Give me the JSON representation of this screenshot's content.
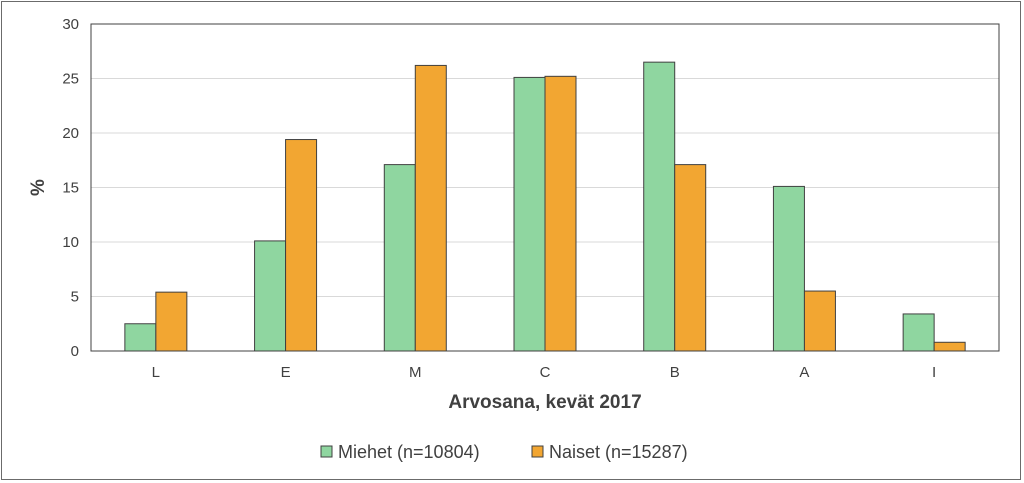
{
  "chart_data": {
    "type": "bar",
    "categories": [
      "L",
      "E",
      "M",
      "C",
      "B",
      "A",
      "I"
    ],
    "series": [
      {
        "name": "Miehet (n=10804)",
        "color": "#8fd6a0",
        "values": [
          2.5,
          10.1,
          17.1,
          25.1,
          26.5,
          15.1,
          3.4
        ]
      },
      {
        "name": "Naiset (n=15287)",
        "color": "#f2a632",
        "values": [
          5.4,
          19.4,
          26.2,
          25.2,
          17.1,
          5.5,
          0.8
        ]
      }
    ],
    "title": "",
    "xlabel": "Arvosana, kevät 2017",
    "ylabel": "%",
    "ylim": [
      0,
      30
    ],
    "yticks": [
      0,
      5,
      10,
      15,
      20,
      25,
      30
    ],
    "grid": true,
    "legend_position": "bottom"
  }
}
